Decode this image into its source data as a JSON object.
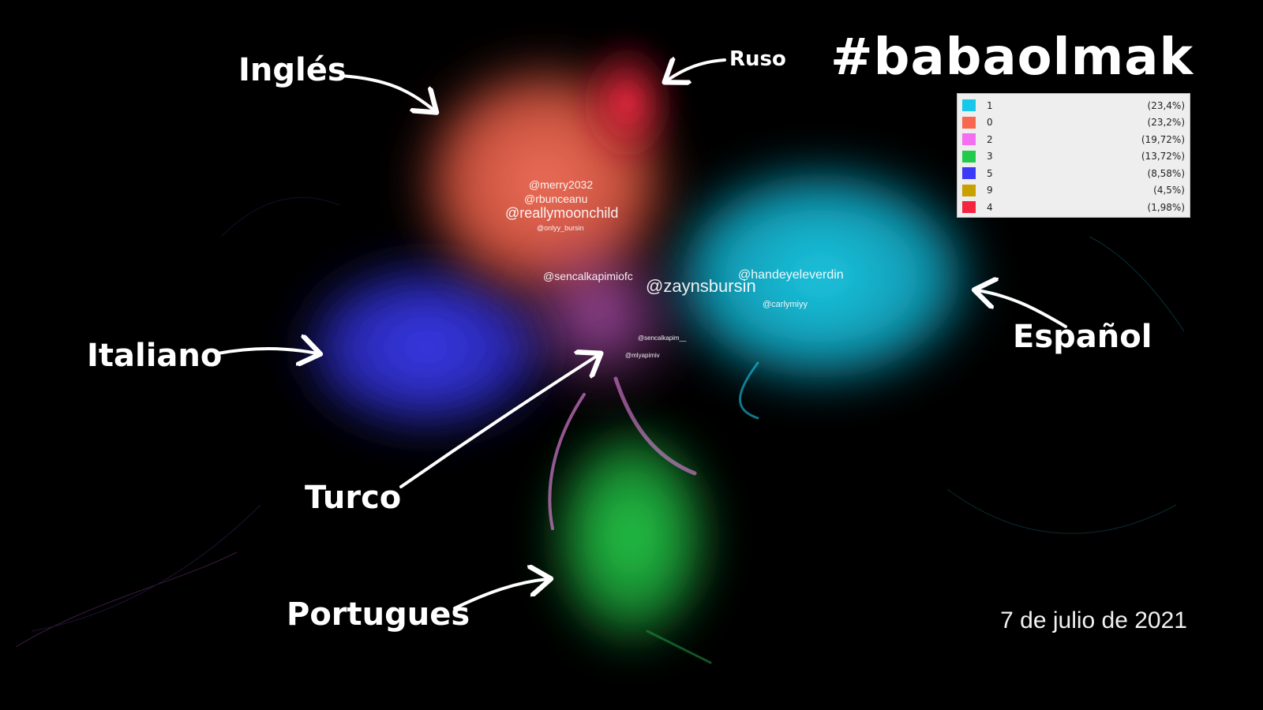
{
  "title": "#babaolmak",
  "date": "7 de julio de 2021",
  "languages": {
    "ingles": "Inglés",
    "ruso": "Ruso",
    "italiano": "Italiano",
    "espanol": "Español",
    "turco": "Turco",
    "portugues": "Portugues"
  },
  "legend": [
    {
      "id": "1",
      "pct": "(23,4%)",
      "color": "#19c7e8"
    },
    {
      "id": "0",
      "pct": "(23,2%)",
      "color": "#f9674f"
    },
    {
      "id": "2",
      "pct": "(19,72%)",
      "color": "#f46ef0"
    },
    {
      "id": "3",
      "pct": "(13,72%)",
      "color": "#22cc4a"
    },
    {
      "id": "5",
      "pct": "(8,58%)",
      "color": "#3a3af8"
    },
    {
      "id": "9",
      "pct": "(4,5%)",
      "color": "#c8a000"
    },
    {
      "id": "4",
      "pct": "(1,98%)",
      "color": "#f5243f"
    }
  ],
  "node_labels": {
    "reallymoonchild": "@reallymoonchild",
    "rbunceanu": "@rbunceanu",
    "merry2032": "@merry2032",
    "sencalkapimiofc": "@sencalkapimiofc",
    "zaynsbursin": "@zaynsbursin",
    "hande": "@handeyeleverdin",
    "carlymiyy": "@carlymiyy",
    "onlyy_bursin": "@onlyy_bursin",
    "sencalkapim": "@sencalkapim__",
    "mlyapimiv": "@mlyapimiv"
  }
}
